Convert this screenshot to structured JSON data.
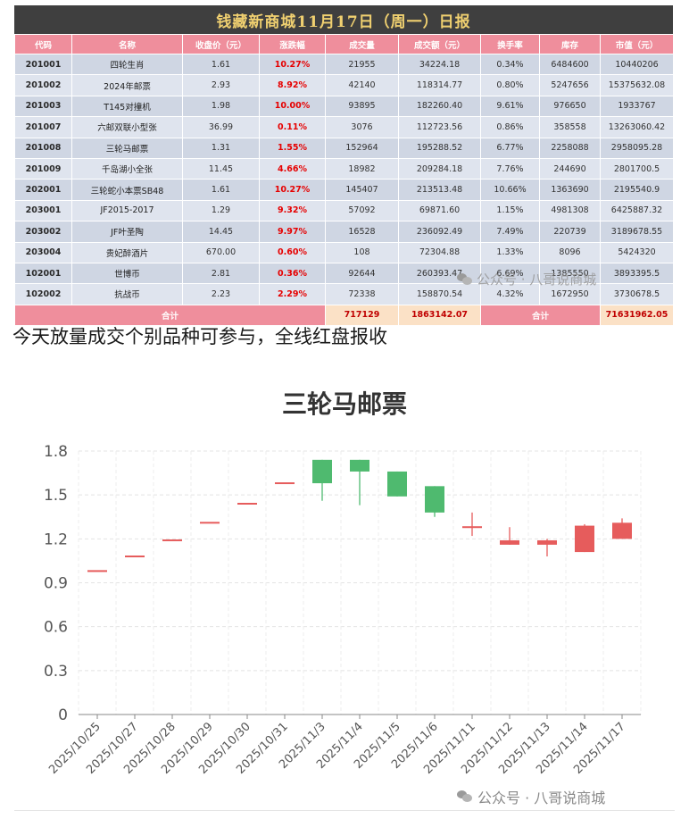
{
  "report": {
    "title": "钱藏新商城11月17日（周一）日报",
    "headers": [
      "代码",
      "名称",
      "收盘价（元）",
      "涨跌幅",
      "成交量",
      "成交额（元）",
      "换手率",
      "库存",
      "市值（元）"
    ],
    "rows": [
      [
        "201001",
        "四轮生肖",
        "1.61",
        "10.27%",
        "21955",
        "34224.18",
        "0.34%",
        "6484600",
        "10440206"
      ],
      [
        "201002",
        "2024年邮票",
        "2.93",
        "8.92%",
        "42140",
        "118314.77",
        "0.80%",
        "5247656",
        "15375632.08"
      ],
      [
        "201003",
        "T145对撞机",
        "1.98",
        "10.00%",
        "93895",
        "182260.40",
        "9.61%",
        "976650",
        "1933767"
      ],
      [
        "201007",
        "六邮双联小型张",
        "36.99",
        "0.11%",
        "3076",
        "112723.56",
        "0.86%",
        "358558",
        "13263060.42"
      ],
      [
        "201008",
        "三轮马邮票",
        "1.31",
        "1.55%",
        "152964",
        "195288.52",
        "6.77%",
        "2258088",
        "2958095.28"
      ],
      [
        "201009",
        "千岛湖小全张",
        "11.45",
        "4.66%",
        "18982",
        "209284.18",
        "7.76%",
        "244690",
        "2801700.5"
      ],
      [
        "202001",
        "三轮蛇小本票SB48",
        "1.61",
        "10.27%",
        "145407",
        "213513.48",
        "10.66%",
        "1363690",
        "2195540.9"
      ],
      [
        "203001",
        "JF2015-2017",
        "1.29",
        "9.32%",
        "57092",
        "69871.60",
        "1.15%",
        "4981308",
        "6425887.32"
      ],
      [
        "203002",
        "JF叶圣陶",
        "14.45",
        "9.97%",
        "16528",
        "236092.49",
        "7.49%",
        "220739",
        "3189678.55"
      ],
      [
        "203004",
        "贵妃醉酒片",
        "670.00",
        "0.60%",
        "108",
        "72304.88",
        "1.33%",
        "8096",
        "5424320"
      ],
      [
        "102001",
        "世博币",
        "2.81",
        "0.36%",
        "92644",
        "260393.47",
        "6.69%",
        "1385550",
        "3893395.5"
      ],
      [
        "102002",
        "抗战币",
        "2.23",
        "2.29%",
        "72338",
        "158870.54",
        "4.32%",
        "1672950",
        "3730678.5"
      ]
    ],
    "total_label": "合计",
    "total_volume": "717129",
    "total_amount": "1863142.07",
    "total_label2": "合计",
    "total_market_value": "71631962.05"
  },
  "watermark": {
    "text": "公众号 · 八哥说商城",
    "icon": "wechat-icon"
  },
  "caption": "今天放量成交个别品种可参与，全线红盘报收",
  "chart_data": {
    "type": "candlestick",
    "title": "三轮马邮票",
    "xlabel": "",
    "ylabel": "",
    "ylim": [
      0,
      1.8
    ],
    "yticks": [
      "0",
      "0.3",
      "0.6",
      "0.9",
      "1.2",
      "1.5",
      "1.8"
    ],
    "grid": true,
    "up_color": "#e65c5c",
    "down_color": "#4fba6f",
    "categories": [
      "2025/10/25",
      "2025/10/27",
      "2025/10/28",
      "2025/10/29",
      "2025/10/30",
      "2025/10/31",
      "2025/11/3",
      "2025/11/4",
      "2025/11/5",
      "2025/11/6",
      "2025/11/11",
      "2025/11/12",
      "2025/11/13",
      "2025/11/14",
      "2025/11/17"
    ],
    "candles": [
      {
        "open": 0.98,
        "close": 0.98,
        "high": 0.98,
        "low": 0.98
      },
      {
        "open": 1.08,
        "close": 1.08,
        "high": 1.08,
        "low": 1.08
      },
      {
        "open": 1.19,
        "close": 1.19,
        "high": 1.19,
        "low": 1.19
      },
      {
        "open": 1.31,
        "close": 1.31,
        "high": 1.31,
        "low": 1.31
      },
      {
        "open": 1.44,
        "close": 1.44,
        "high": 1.44,
        "low": 1.44
      },
      {
        "open": 1.58,
        "close": 1.58,
        "high": 1.58,
        "low": 1.58
      },
      {
        "open": 1.74,
        "close": 1.58,
        "high": 1.74,
        "low": 1.46
      },
      {
        "open": 1.74,
        "close": 1.66,
        "high": 1.74,
        "low": 1.43
      },
      {
        "open": 1.66,
        "close": 1.49,
        "high": 1.66,
        "low": 1.49
      },
      {
        "open": 1.56,
        "close": 1.38,
        "high": 1.56,
        "low": 1.35
      },
      {
        "open": 1.28,
        "close": 1.28,
        "high": 1.38,
        "low": 1.22
      },
      {
        "open": 1.16,
        "close": 1.19,
        "high": 1.28,
        "low": 1.16
      },
      {
        "open": 1.16,
        "close": 1.19,
        "high": 1.2,
        "low": 1.08
      },
      {
        "open": 1.11,
        "close": 1.29,
        "high": 1.3,
        "low": 1.11
      },
      {
        "open": 1.2,
        "close": 1.31,
        "high": 1.34,
        "low": 1.2
      }
    ]
  }
}
